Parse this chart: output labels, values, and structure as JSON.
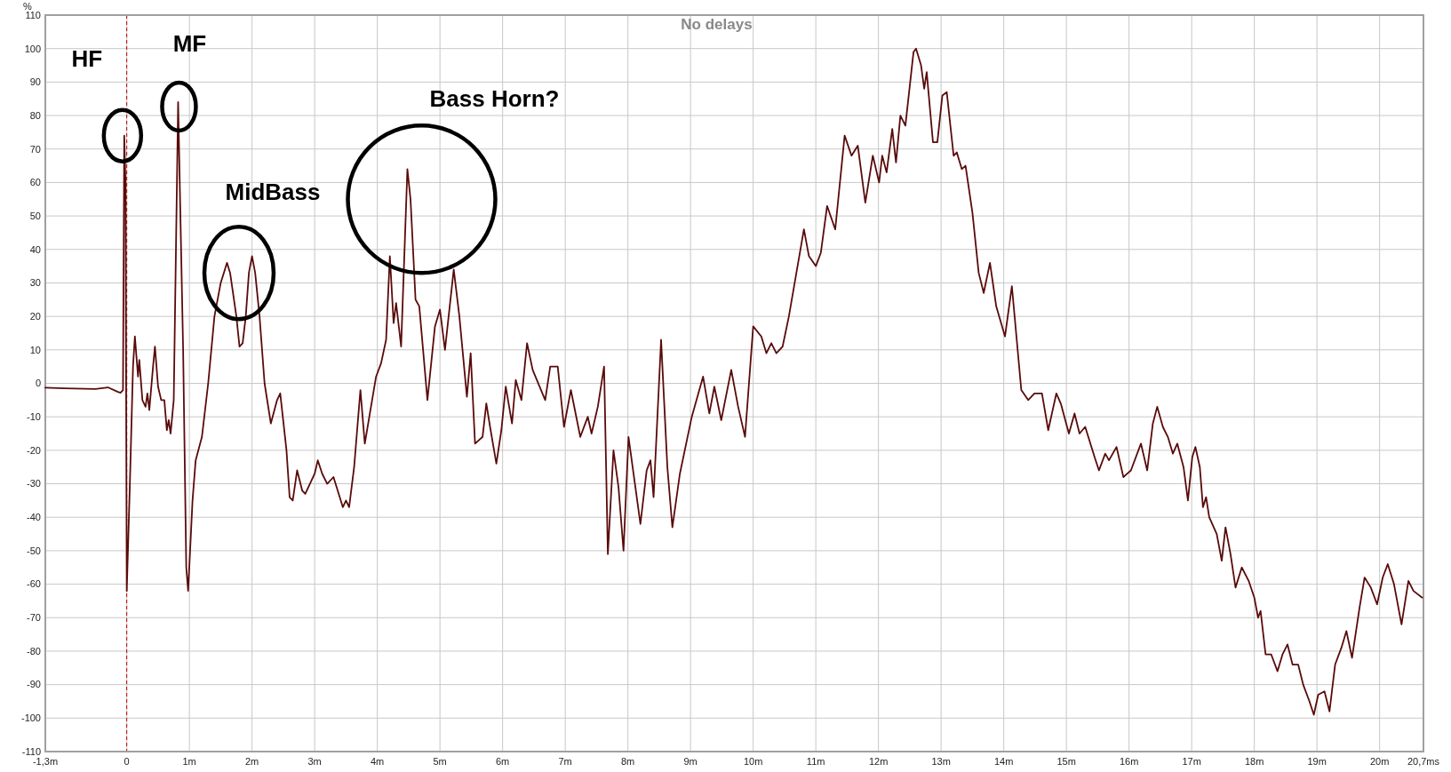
{
  "chart_data": {
    "type": "line",
    "title": "No delays",
    "ylabel": "%",
    "xlim": [
      -1.3,
      20.7
    ],
    "ylim": [
      -110,
      110
    ],
    "xticks": [
      {
        "value": -1.3,
        "label": "-1,3m"
      },
      0,
      {
        "value": 1,
        "label": "1m"
      },
      {
        "value": 2,
        "label": "2m"
      },
      {
        "value": 3,
        "label": "3m"
      },
      {
        "value": 4,
        "label": "4m"
      },
      {
        "value": 5,
        "label": "5m"
      },
      {
        "value": 6,
        "label": "6m"
      },
      {
        "value": 7,
        "label": "7m"
      },
      {
        "value": 8,
        "label": "8m"
      },
      {
        "value": 9,
        "label": "9m"
      },
      {
        "value": 10,
        "label": "10m"
      },
      {
        "value": 11,
        "label": "11m"
      },
      {
        "value": 12,
        "label": "12m"
      },
      {
        "value": 13,
        "label": "13m"
      },
      {
        "value": 14,
        "label": "14m"
      },
      {
        "value": 15,
        "label": "15m"
      },
      {
        "value": 16,
        "label": "16m"
      },
      {
        "value": 17,
        "label": "17m"
      },
      {
        "value": 18,
        "label": "18m"
      },
      {
        "value": 19,
        "label": "19m"
      },
      {
        "value": 20,
        "label": "20m"
      },
      {
        "value": 20.7,
        "label": "20,7ms"
      }
    ],
    "yticks": [
      -110,
      -100,
      -90,
      -80,
      -70,
      -60,
      -50,
      -40,
      -30,
      -20,
      -10,
      0,
      10,
      20,
      30,
      40,
      50,
      60,
      70,
      80,
      90,
      100,
      110
    ],
    "grid": true,
    "marker": "none",
    "line_style": "solid",
    "ref_lines": [
      {
        "axis": "x",
        "value": 0,
        "color": "#c00000",
        "line_style": "dashed"
      }
    ],
    "annotations": [
      {
        "text": "HF",
        "x": -0.04,
        "y": 74
      },
      {
        "text": "MF",
        "x": 0.82,
        "y": 84
      },
      {
        "text": "MidBass",
        "x": 1.65,
        "y": 33
      },
      {
        "text": "Bass Horn?",
        "x": 4.48,
        "y": 64
      }
    ],
    "series": [
      {
        "color": "#5a0a0a",
        "x": [
          -1.3,
          -1.0,
          -0.5,
          -0.3,
          -0.15,
          -0.1,
          -0.06,
          -0.04,
          -0.02,
          0.0,
          0.05,
          0.1,
          0.13,
          0.18,
          0.2,
          0.25,
          0.3,
          0.33,
          0.36,
          0.42,
          0.45,
          0.5,
          0.55,
          0.6,
          0.64,
          0.67,
          0.7,
          0.75,
          0.82,
          0.9,
          0.95,
          0.98,
          1.05,
          1.1,
          1.2,
          1.3,
          1.4,
          1.5,
          1.55,
          1.6,
          1.65,
          1.75,
          1.8,
          1.85,
          1.9,
          1.95,
          2.0,
          2.05,
          2.12,
          2.2,
          2.3,
          2.4,
          2.45,
          2.55,
          2.6,
          2.65,
          2.72,
          2.8,
          2.85,
          3.0,
          3.05,
          3.12,
          3.2,
          3.3,
          3.35,
          3.45,
          3.5,
          3.55,
          3.63,
          3.73,
          3.8,
          3.98,
          4.06,
          4.14,
          4.2,
          4.26,
          4.3,
          4.38,
          4.48,
          4.53,
          4.61,
          4.67,
          4.8,
          4.92,
          5.0,
          5.08,
          5.22,
          5.31,
          5.43,
          5.49,
          5.56,
          5.68,
          5.74,
          5.8,
          5.9,
          5.98,
          6.05,
          6.15,
          6.21,
          6.3,
          6.39,
          6.48,
          6.68,
          6.76,
          6.88,
          6.98,
          7.09,
          7.24,
          7.36,
          7.42,
          7.52,
          7.62,
          7.68,
          7.77,
          7.85,
          7.93,
          8.01,
          8.09,
          8.2,
          8.3,
          8.36,
          8.41,
          8.53,
          8.63,
          8.71,
          8.83,
          9.02,
          9.2,
          9.3,
          9.38,
          9.49,
          9.65,
          9.76,
          9.87,
          10.0,
          10.13,
          10.21,
          10.29,
          10.37,
          10.47,
          10.57,
          10.69,
          10.81,
          10.89,
          11.0,
          11.08,
          11.18,
          11.31,
          11.46,
          11.57,
          11.67,
          11.79,
          11.91,
          12.01,
          12.06,
          12.13,
          12.22,
          12.28,
          12.35,
          12.43,
          12.56,
          12.6,
          12.68,
          12.73,
          12.77,
          12.87,
          12.94,
          13.02,
          13.09,
          13.2,
          13.25,
          13.33,
          13.39,
          13.5,
          13.6,
          13.68,
          13.78,
          13.88,
          14.02,
          14.13,
          14.28,
          14.39,
          14.49,
          14.61,
          14.71,
          14.84,
          14.91,
          15.04,
          15.13,
          15.21,
          15.3,
          15.45,
          15.52,
          15.62,
          15.68,
          15.8,
          15.91,
          16.03,
          16.19,
          16.29,
          16.38,
          16.45,
          16.54,
          16.62,
          16.7,
          16.77,
          16.87,
          16.94,
          17.01,
          17.06,
          17.13,
          17.18,
          17.23,
          17.28,
          17.4,
          17.48,
          17.54,
          17.62,
          17.7,
          17.8,
          17.91,
          18.0,
          18.06,
          18.1,
          18.18,
          18.27,
          18.37,
          18.45,
          18.53,
          18.61,
          18.7,
          18.78,
          18.88,
          18.95,
          19.02,
          19.12,
          19.2,
          19.29,
          19.39,
          19.47,
          19.56,
          19.68,
          19.76,
          19.86,
          19.96,
          20.05,
          20.13,
          20.23,
          20.35,
          20.46,
          20.54,
          20.68
        ],
        "values": [
          -1.3,
          -1.5,
          -1.7,
          -1.2,
          -2.5,
          -2.8,
          -2,
          74,
          60,
          -62,
          -30,
          5,
          14,
          2,
          7,
          -5,
          -7,
          -3,
          -8,
          5,
          11,
          -1,
          -5,
          -5,
          -14,
          -11,
          -15,
          -5,
          84,
          10,
          -55,
          -62,
          -35,
          -23,
          -16,
          0,
          20,
          30,
          33,
          36,
          33,
          20,
          11,
          12,
          20,
          33,
          38,
          33,
          20,
          0,
          -12,
          -5,
          -3,
          -20,
          -34,
          -35,
          -26,
          -32,
          -33,
          -27,
          -23,
          -27,
          -30,
          -28,
          -31,
          -37,
          -35,
          -37,
          -25,
          -2,
          -18,
          2,
          6,
          13,
          38,
          18,
          24,
          11,
          64,
          55,
          25,
          23,
          -5,
          17,
          22,
          10,
          34,
          20,
          -4,
          9,
          -18,
          -16,
          -6,
          -13,
          -24,
          -14,
          -1,
          -12,
          1,
          -5,
          12,
          4,
          -5,
          5,
          5,
          -13,
          -2,
          -16,
          -10,
          -15,
          -7,
          5,
          -51,
          -20,
          -31,
          -50,
          -16,
          -27,
          -42,
          -26,
          -23,
          -34,
          13,
          -25,
          -43,
          -27,
          -10,
          2,
          -9,
          -1,
          -11,
          4,
          -7,
          -16,
          17,
          14,
          9,
          12,
          9,
          11,
          20,
          33,
          46,
          38,
          35,
          39,
          53,
          46,
          74,
          68,
          71,
          54,
          68,
          60,
          68,
          63,
          76,
          66,
          80,
          77,
          99,
          100,
          95,
          88,
          93,
          72,
          72,
          86,
          87,
          68,
          69,
          64,
          65,
          51,
          33,
          27,
          36,
          23,
          14,
          29,
          -2,
          -5,
          -3,
          -3,
          -14,
          -3,
          -6,
          -15,
          -9,
          -15,
          -13,
          -22,
          -26,
          -21,
          -23,
          -19,
          -28,
          -26,
          -18,
          -26,
          -12,
          -7,
          -13,
          -16,
          -21,
          -18,
          -25,
          -35,
          -22,
          -19,
          -25,
          -37,
          -34,
          -40,
          -45,
          -53,
          -43,
          -51,
          -61,
          -55,
          -59,
          -64,
          -70,
          -68,
          -81,
          -81,
          -86,
          -81,
          -78,
          -84,
          -84,
          -90,
          -95,
          -99,
          -93,
          -92,
          -98,
          -84,
          -79,
          -74,
          -82,
          -67,
          -58,
          -61,
          -66,
          -58,
          -54,
          -60,
          -72,
          -59,
          -62,
          -64
        ]
      }
    ]
  }
}
